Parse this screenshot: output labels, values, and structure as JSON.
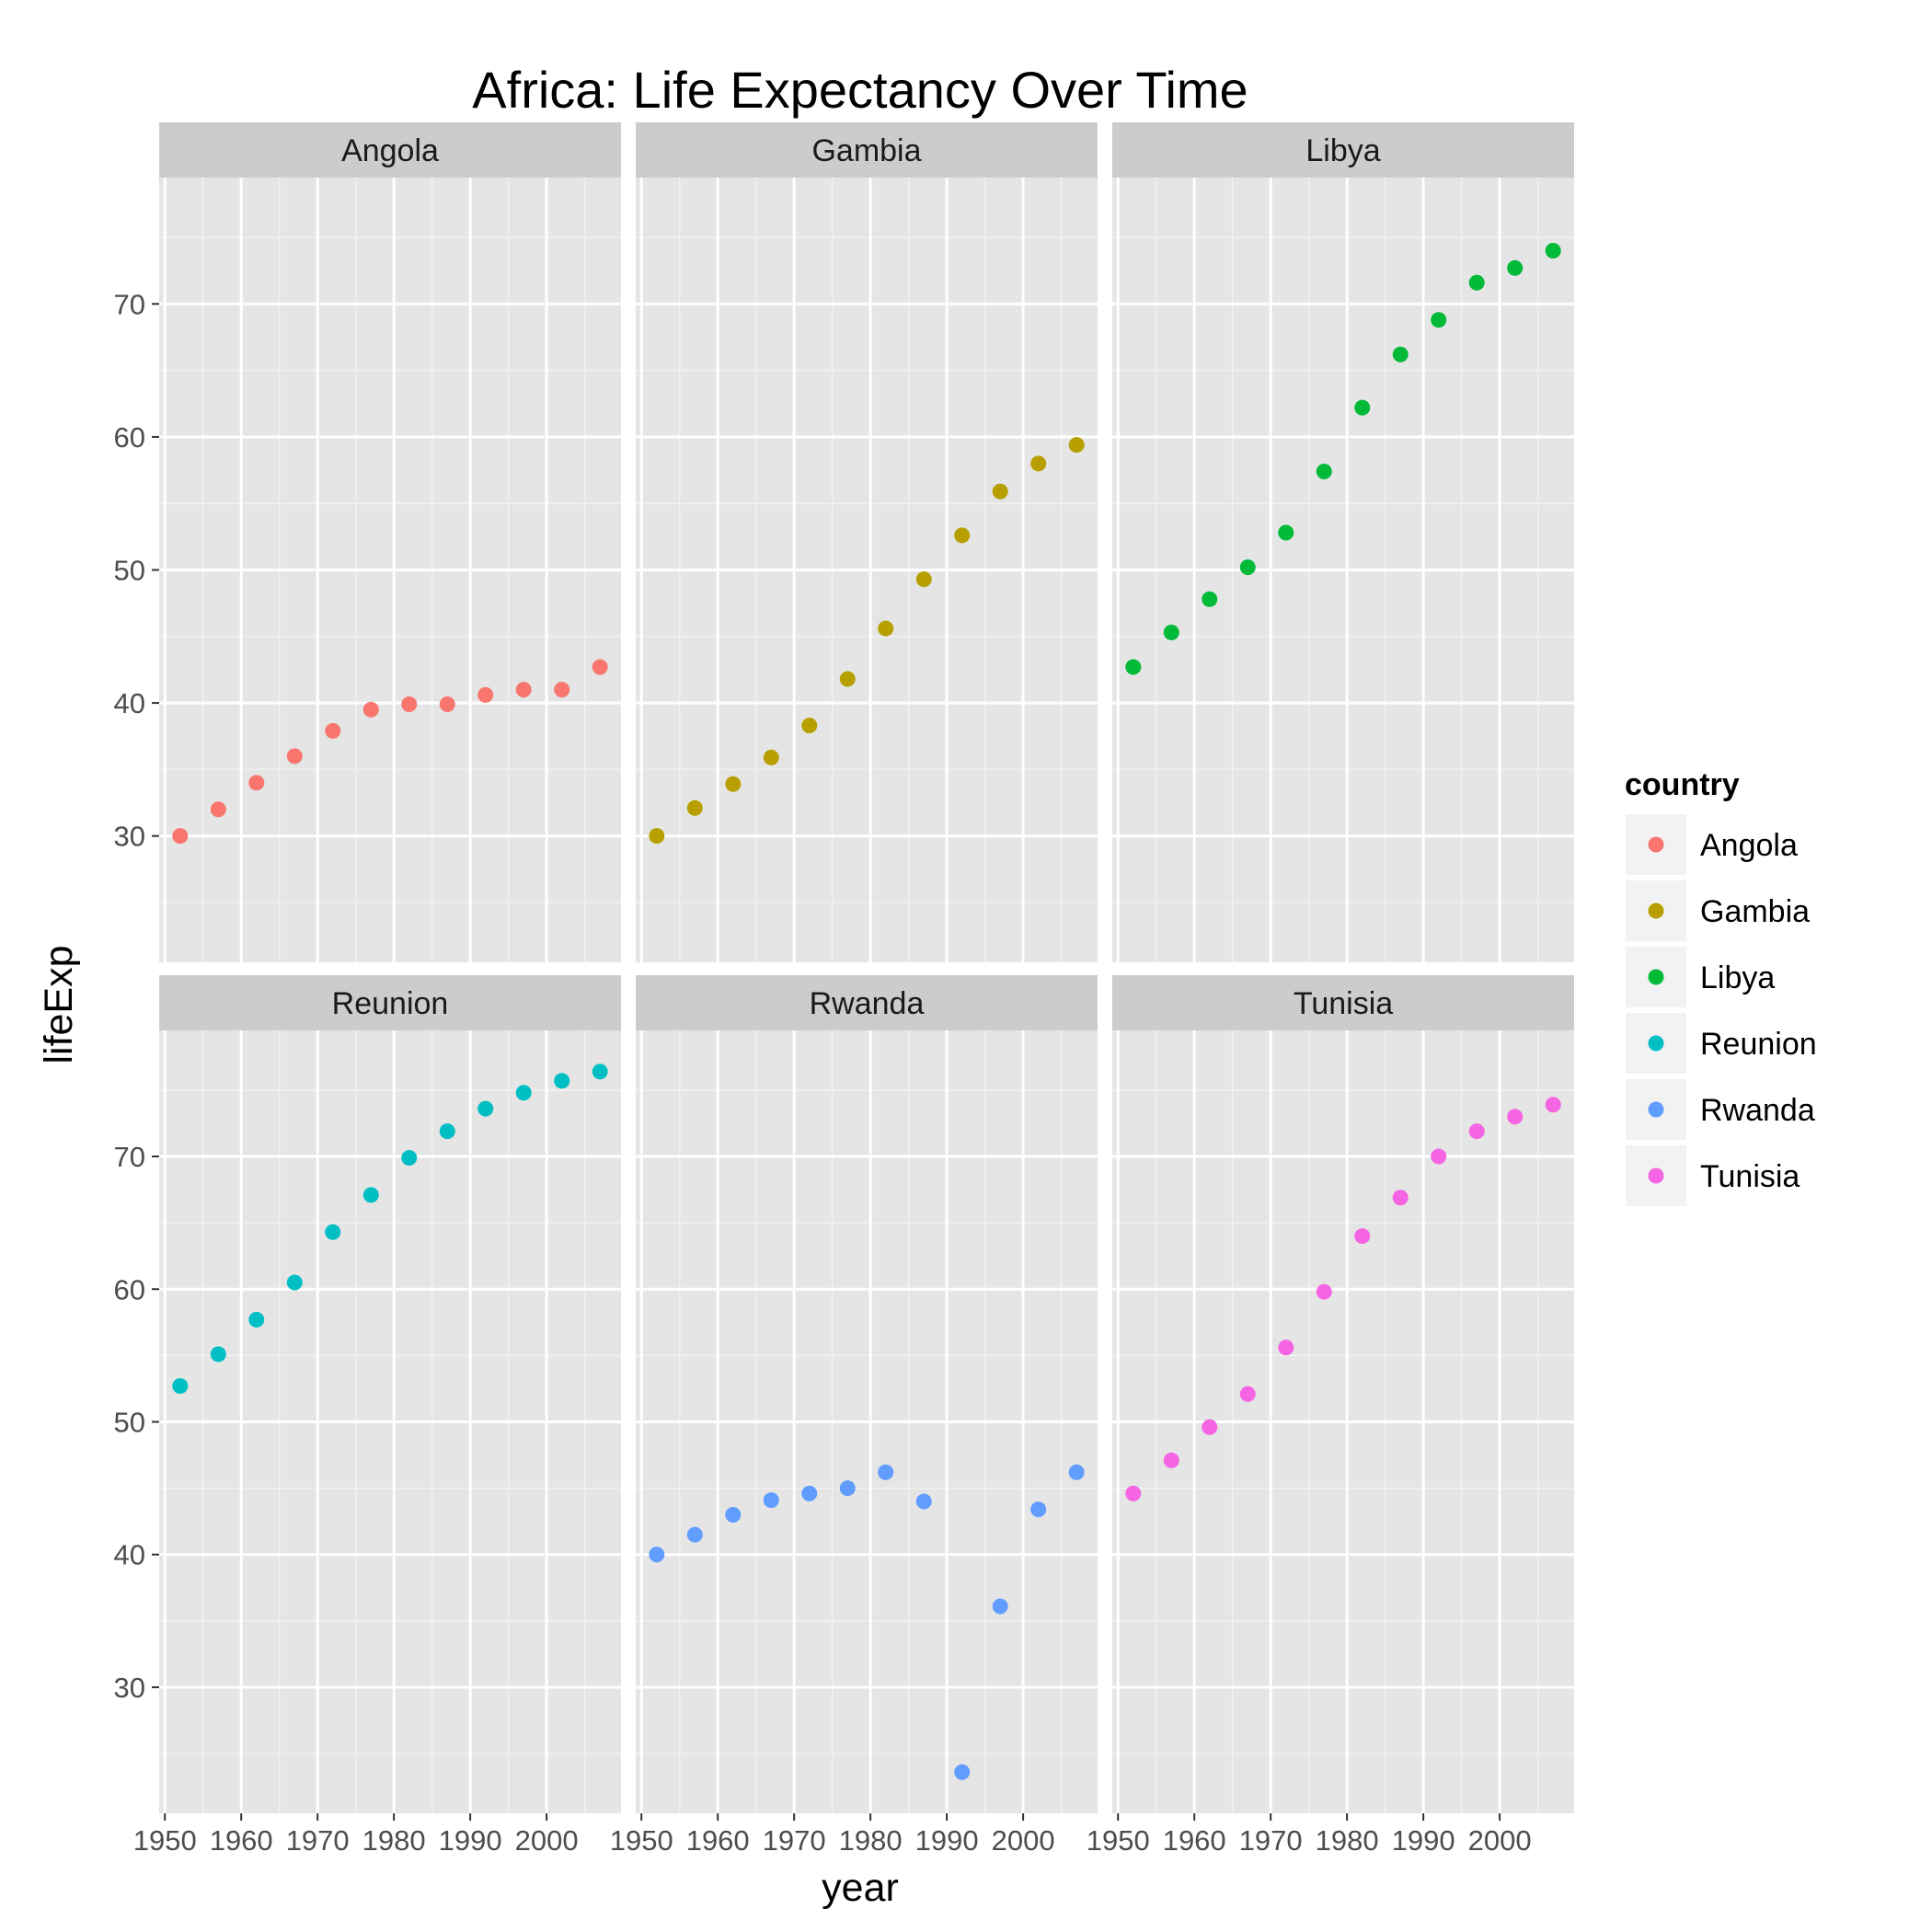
{
  "chart_data": {
    "type": "scatter",
    "title": "Africa: Life Expectancy Over Time",
    "xlabel": "year",
    "ylabel": "lifeExp",
    "xlim": [
      1949.25,
      2009.75
    ],
    "ylim": [
      20.5,
      79.5
    ],
    "x_ticks": [
      1950,
      1960,
      1970,
      1980,
      1990,
      2000
    ],
    "y_ticks": [
      30,
      40,
      50,
      60,
      70
    ],
    "grid": true,
    "facet_layout": "3 columns x 2 rows",
    "legend": {
      "title": "country",
      "position": "right"
    },
    "x": [
      1952,
      1957,
      1962,
      1967,
      1972,
      1977,
      1982,
      1987,
      1992,
      1997,
      2002,
      2007
    ],
    "series": [
      {
        "name": "Angola",
        "color": "#F8766D",
        "values": [
          30.0,
          32.0,
          34.0,
          36.0,
          37.9,
          39.5,
          39.9,
          39.9,
          40.6,
          41.0,
          41.0,
          42.7
        ]
      },
      {
        "name": "Gambia",
        "color": "#B79F00",
        "values": [
          30.0,
          32.1,
          33.9,
          35.9,
          38.3,
          41.8,
          45.6,
          49.3,
          52.6,
          55.9,
          58.0,
          59.4
        ]
      },
      {
        "name": "Libya",
        "color": "#00BA38",
        "values": [
          42.7,
          45.3,
          47.8,
          50.2,
          52.8,
          57.4,
          62.2,
          66.2,
          68.8,
          71.6,
          72.7,
          74.0
        ]
      },
      {
        "name": "Reunion",
        "color": "#00BFC4",
        "values": [
          52.7,
          55.1,
          57.7,
          60.5,
          64.3,
          67.1,
          69.9,
          71.9,
          73.6,
          74.8,
          75.7,
          76.4
        ]
      },
      {
        "name": "Rwanda",
        "color": "#619CFF",
        "values": [
          40.0,
          41.5,
          43.0,
          44.1,
          44.6,
          45.0,
          46.2,
          44.0,
          23.6,
          36.1,
          43.4,
          46.2
        ]
      },
      {
        "name": "Tunisia",
        "color": "#F564E3",
        "values": [
          44.6,
          47.1,
          49.6,
          52.1,
          55.6,
          59.8,
          64.0,
          66.9,
          70.0,
          71.9,
          73.0,
          73.9
        ]
      }
    ]
  },
  "colors": {
    "panel_background": "#E5E5E5",
    "strip_background": "#CCCCCC",
    "grid_major": "#FFFFFF",
    "grid_minor": "#F2F2F2",
    "tick_text": "#4D4D4D"
  }
}
